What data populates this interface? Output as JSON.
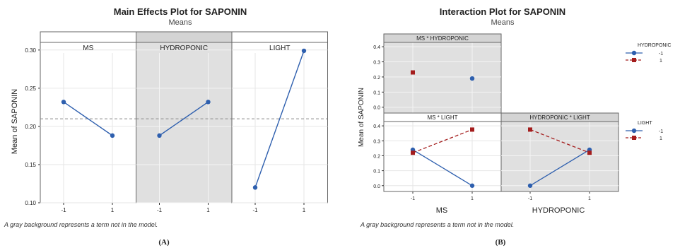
{
  "colors": {
    "level_low": "#2e5fae",
    "level_high": "#a41d1d",
    "panel_out_model": "#e0e0e0",
    "panel_in_model": "#ffffff",
    "frame": "#666666"
  },
  "chart_data": [
    {
      "type": "line",
      "title": "Main Effects Plot for SAPONIN",
      "subtitle": "Means",
      "ylabel": "Mean of SAPONIN",
      "ylim": [
        0.1,
        0.31
      ],
      "yticks": [
        "0.10",
        "0.15",
        "0.20",
        "0.25",
        "0.30"
      ],
      "yvalues": [
        0.1,
        0.15,
        0.2,
        0.25,
        0.3
      ],
      "grand_mean": 0.21,
      "footnote": "A gray background represents a term not in the model.",
      "caption": "(A)",
      "panels": [
        {
          "label": "MS",
          "in_model": true,
          "x": [
            "-1",
            "1"
          ],
          "values": [
            0.232,
            0.188
          ]
        },
        {
          "label": "HYDROPONIC",
          "in_model": false,
          "x": [
            "-1",
            "1"
          ],
          "values": [
            0.188,
            0.232
          ]
        },
        {
          "label": "LIGHT",
          "in_model": true,
          "x": [
            "-1",
            "1"
          ],
          "values": [
            0.12,
            0.299
          ]
        }
      ]
    },
    {
      "type": "line",
      "title": "Interaction Plot for SAPONIN",
      "subtitle": "Means",
      "ylabel": "Mean of SAPONIN",
      "ylim": [
        -0.02,
        0.41
      ],
      "yticks": [
        "0.0",
        "0.1",
        "0.2",
        "0.3",
        "0.4"
      ],
      "yvalues": [
        0,
        0.1,
        0.2,
        0.3,
        0.4
      ],
      "footnote": "A gray background represents a term not in the model.",
      "caption": "(B)",
      "x_axis_labels": [
        "MS",
        "HYDROPONIC"
      ],
      "panels": [
        {
          "label": "MS * HYDROPONIC",
          "in_model": false,
          "x": [
            "-1",
            "1"
          ],
          "series": [
            {
              "name": "-1",
              "values": [
                null,
                0.19
              ]
            },
            {
              "name": "1",
              "values": [
                0.23,
                null
              ]
            }
          ]
        },
        {
          "label": "MS * LIGHT",
          "in_model": true,
          "x": [
            "-1",
            "1"
          ],
          "series": [
            {
              "name": "-1",
              "values": [
                0.24,
                0.0
              ]
            },
            {
              "name": "1",
              "values": [
                0.22,
                0.375
              ]
            }
          ]
        },
        {
          "label": "HYDROPONIC * LIGHT",
          "in_model": false,
          "x": [
            "-1",
            "1"
          ],
          "series": [
            {
              "name": "-1",
              "values": [
                0.0,
                0.24
              ]
            },
            {
              "name": "1",
              "values": [
                0.375,
                0.22
              ]
            }
          ]
        }
      ],
      "legends": [
        {
          "title": "HYDROPONIC",
          "entries": [
            "-1",
            "1"
          ]
        },
        {
          "title": "LIGHT",
          "entries": [
            "-1",
            "1"
          ]
        }
      ]
    }
  ]
}
